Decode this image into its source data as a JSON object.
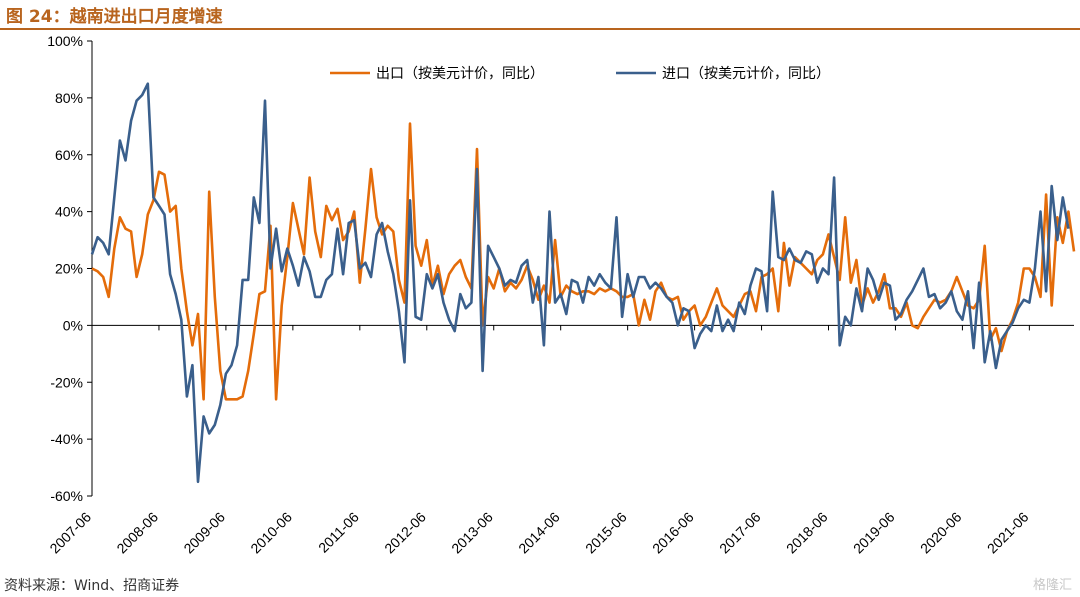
{
  "figure_title": "图 24：越南进出口月度增速",
  "source": "资料来源：Wind、招商证券",
  "watermark": "格隆汇",
  "chart_data": {
    "type": "line",
    "title": "越南进出口月度增速",
    "xlabel": "",
    "ylabel": "",
    "ylim": [
      -0.6,
      1.0
    ],
    "y_ticks": [
      -0.6,
      -0.4,
      -0.2,
      0,
      0.2,
      0.4,
      0.6,
      0.8,
      1.0
    ],
    "y_tick_labels": [
      "-60%",
      "-40%",
      "-20%",
      "0%",
      "20%",
      "40%",
      "60%",
      "80%",
      "100%"
    ],
    "x_tick_labels": [
      "2007-06",
      "2008-06",
      "2009-06",
      "2010-06",
      "2011-06",
      "2012-06",
      "2013-06",
      "2014-06",
      "2015-06",
      "2016-06",
      "2017-06",
      "2018-06",
      "2019-06",
      "2020-06",
      "2021-06"
    ],
    "x_start": "2007-06",
    "x_end": "2021-06",
    "grid": false,
    "legend_position": "top",
    "series": [
      {
        "name": "出口（按美元计价，同比）",
        "color": "#e46c0a",
        "values": [
          0.2,
          0.19,
          0.17,
          0.1,
          0.27,
          0.38,
          0.34,
          0.33,
          0.17,
          0.25,
          0.39,
          0.44,
          0.54,
          0.53,
          0.4,
          0.42,
          0.2,
          0.05,
          -0.07,
          0.04,
          -0.26,
          0.47,
          0.1,
          -0.16,
          -0.26,
          -0.26,
          -0.26,
          -0.25,
          -0.16,
          -0.03,
          0.11,
          0.12,
          0.35,
          -0.26,
          0.07,
          0.24,
          0.43,
          0.34,
          0.25,
          0.52,
          0.33,
          0.24,
          0.42,
          0.37,
          0.41,
          0.3,
          0.33,
          0.4,
          0.15,
          0.34,
          0.55,
          0.38,
          0.32,
          0.35,
          0.33,
          0.16,
          0.08,
          0.71,
          0.28,
          0.21,
          0.3,
          0.14,
          0.21,
          0.11,
          0.18,
          0.21,
          0.23,
          0.17,
          0.13,
          0.62,
          0.0,
          0.17,
          0.13,
          0.2,
          0.12,
          0.15,
          0.13,
          0.16,
          0.21,
          0.16,
          0.09,
          0.14,
          0.08,
          0.3,
          0.1,
          0.14,
          0.12,
          0.11,
          0.12,
          0.12,
          0.11,
          0.13,
          0.12,
          0.13,
          0.12,
          0.1,
          0.1,
          0.11,
          0.0,
          0.09,
          0.02,
          0.12,
          0.15,
          0.1,
          0.09,
          0.1,
          0.02,
          0.05,
          0.07,
          0.0,
          0.03,
          0.08,
          0.13,
          0.07,
          0.05,
          0.03,
          0.07,
          0.11,
          0.12,
          0.05,
          0.17,
          0.18,
          0.2,
          0.05,
          0.29,
          0.14,
          0.24,
          0.22,
          0.2,
          0.18,
          0.23,
          0.25,
          0.32,
          0.24,
          0.16,
          0.38,
          0.15,
          0.23,
          0.07,
          0.13,
          0.08,
          0.12,
          0.18,
          0.06,
          0.06,
          0.03,
          0.08,
          0.0,
          -0.01,
          0.03,
          0.06,
          0.09,
          0.08,
          0.09,
          0.12,
          0.17,
          0.12,
          0.07,
          0.06,
          0.09,
          0.28,
          -0.05,
          -0.01,
          -0.09,
          -0.02,
          0.02,
          0.08,
          0.2,
          0.2,
          0.17,
          0.1,
          0.46,
          0.07,
          0.38,
          0.29,
          0.4,
          0.26
        ]
      },
      {
        "name": "进口（按美元计价，同比）",
        "color": "#3a5f8c",
        "values": [
          0.25,
          0.31,
          0.29,
          0.25,
          0.45,
          0.65,
          0.58,
          0.72,
          0.79,
          0.81,
          0.85,
          0.45,
          0.42,
          0.39,
          0.18,
          0.11,
          0.02,
          -0.25,
          -0.14,
          -0.55,
          -0.32,
          -0.38,
          -0.35,
          -0.28,
          -0.17,
          -0.14,
          -0.07,
          0.16,
          0.16,
          0.45,
          0.36,
          0.79,
          0.2,
          0.34,
          0.19,
          0.27,
          0.21,
          0.14,
          0.24,
          0.19,
          0.1,
          0.1,
          0.16,
          0.18,
          0.34,
          0.18,
          0.36,
          0.37,
          0.2,
          0.22,
          0.17,
          0.32,
          0.36,
          0.26,
          0.18,
          0.05,
          -0.13,
          0.44,
          0.03,
          0.02,
          0.18,
          0.13,
          0.18,
          0.08,
          0.02,
          -0.02,
          0.11,
          0.06,
          0.08,
          0.55,
          -0.16,
          0.28,
          0.24,
          0.2,
          0.14,
          0.16,
          0.15,
          0.21,
          0.23,
          0.08,
          0.17,
          -0.07,
          0.4,
          0.08,
          0.11,
          0.04,
          0.16,
          0.15,
          0.08,
          0.17,
          0.14,
          0.18,
          0.15,
          0.13,
          0.38,
          0.03,
          0.18,
          0.1,
          0.17,
          0.17,
          0.13,
          0.15,
          0.13,
          0.1,
          0.08,
          0.0,
          0.06,
          0.05,
          -0.08,
          -0.03,
          0.0,
          -0.02,
          0.07,
          -0.02,
          0.02,
          -0.02,
          0.08,
          0.04,
          0.14,
          0.2,
          0.19,
          0.05,
          0.47,
          0.24,
          0.23,
          0.27,
          0.23,
          0.22,
          0.26,
          0.25,
          0.15,
          0.2,
          0.18,
          0.52,
          -0.07,
          0.03,
          0.0,
          0.13,
          0.05,
          0.2,
          0.16,
          0.09,
          0.15,
          0.14,
          0.02,
          0.04,
          0.09,
          0.12,
          0.16,
          0.2,
          0.1,
          0.11,
          0.06,
          0.08,
          0.12,
          0.05,
          0.02,
          0.12,
          -0.08,
          0.15,
          -0.13,
          -0.02,
          -0.15,
          -0.05,
          -0.02,
          0.01,
          0.06,
          0.09,
          0.08,
          0.2,
          0.4,
          0.12,
          0.49,
          0.3,
          0.45,
          0.34
        ]
      }
    ]
  }
}
